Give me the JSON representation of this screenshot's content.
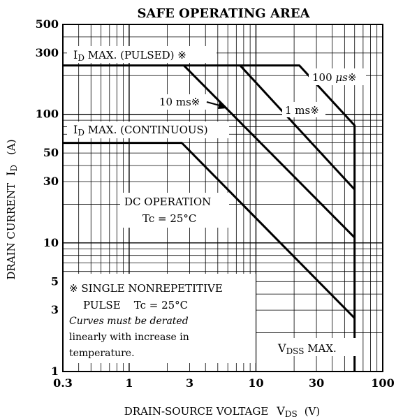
{
  "chart_data": {
    "type": "line",
    "title": "SAFE OPERATING AREA",
    "xlabel": "DRAIN-SOURCE VOLTAGE",
    "xlabel_symbol": "V",
    "xlabel_symbol_sub": "DS",
    "xlabel_unit": "(V)",
    "ylabel": "DRAIN CURRENT",
    "ylabel_symbol": "I",
    "ylabel_symbol_sub": "D",
    "ylabel_unit": "(A)",
    "x_scale": "log",
    "y_scale": "log",
    "xlim": [
      0.3,
      100
    ],
    "ylim": [
      1,
      500
    ],
    "grid": true,
    "x_ticks": [
      {
        "value": 0.3,
        "label": "0.3"
      },
      {
        "value": 1,
        "label": "1"
      },
      {
        "value": 3,
        "label": "3"
      },
      {
        "value": 10,
        "label": "10"
      },
      {
        "value": 30,
        "label": "30"
      },
      {
        "value": 100,
        "label": "100"
      }
    ],
    "y_ticks": [
      {
        "value": 1,
        "label": "1"
      },
      {
        "value": 3,
        "label": "3"
      },
      {
        "value": 5,
        "label": "5"
      },
      {
        "value": 10,
        "label": "10"
      },
      {
        "value": 30,
        "label": "30"
      },
      {
        "value": 50,
        "label": "50"
      },
      {
        "value": 100,
        "label": "100"
      },
      {
        "value": 300,
        "label": "300"
      },
      {
        "value": 500,
        "label": "500"
      }
    ],
    "series": [
      {
        "name": "100 µs※",
        "points": [
          [
            0.3,
            240
          ],
          [
            22,
            240
          ],
          [
            60,
            82
          ],
          [
            60,
            1
          ]
        ]
      },
      {
        "name": "1 ms※",
        "points": [
          [
            7.5,
            240
          ],
          [
            60,
            26
          ]
        ]
      },
      {
        "name": "10 ms※",
        "points": [
          [
            2.7,
            240
          ],
          [
            60,
            11
          ]
        ]
      },
      {
        "name": "DC OPERATION Tc = 25°C",
        "points": [
          [
            0.3,
            60
          ],
          [
            2.6,
            60
          ],
          [
            60,
            2.6
          ]
        ]
      }
    ],
    "annotations": {
      "id_pulsed": "I",
      "id_pulsed_sub": "D",
      "id_pulsed_rest": " MAX. (PULSED) ※",
      "id_cont": "I",
      "id_cont_sub": "D",
      "id_cont_rest": " MAX. (CONTINUOUS)",
      "us100_num": "100 ",
      "us100_unit": "μs",
      "us100_mark": "※",
      "ms1": "1 ms※",
      "ms10": "10 ms※",
      "dc_line1": "DC OPERATION",
      "dc_line2": "Tc = 25°C",
      "note_line1": "※ SINGLE NONREPETITIVE",
      "note_line2": "PULSE    Tc = 25°C",
      "note_line3": "Curves must be derated",
      "note_line4": "linearly with increase in",
      "note_line5": "temperature.",
      "vdss": "V",
      "vdss_sub": "DSS",
      "vdss_rest": " MAX."
    }
  }
}
